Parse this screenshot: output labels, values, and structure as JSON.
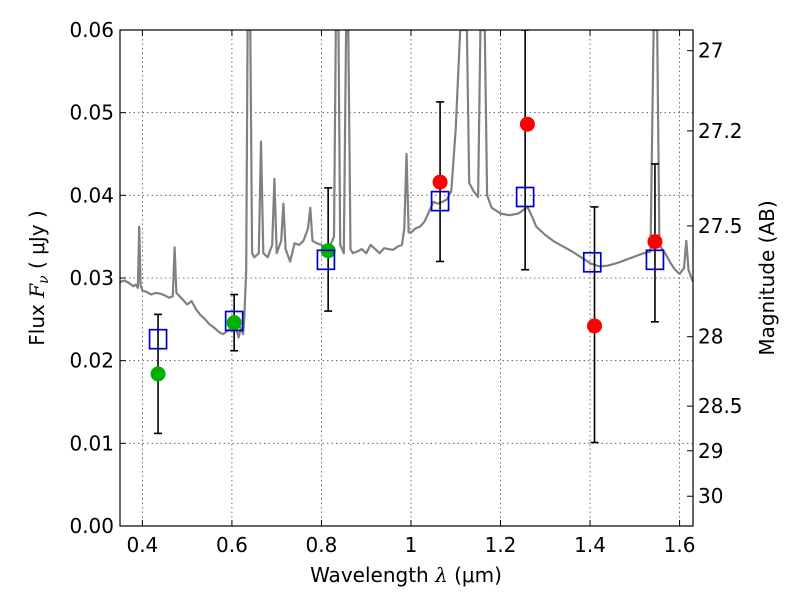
{
  "chart_data": {
    "type": "scatter",
    "xlabel_prefix": "Wavelength",
    "xlabel_symbol": "λ",
    "xlabel_unit": "(μm)",
    "ylabel_prefix": "Flux",
    "ylabel_symbol": "F",
    "ylabel_subscript": "ν",
    "ylabel_unit": "( μJy )",
    "y2label": "Magnitude (AB)",
    "xlim": [
      0.35,
      1.63
    ],
    "ylim": [
      0.0,
      0.06
    ],
    "grid": true,
    "x_ticks": [
      0.4,
      0.6,
      0.8,
      1.0,
      1.2,
      1.4,
      1.6
    ],
    "x_tick_labels": [
      "0.4",
      "0.6",
      "0.8",
      "1",
      "1.2",
      "1.4",
      "1.6"
    ],
    "y_ticks": [
      0.0,
      0.01,
      0.02,
      0.03,
      0.04,
      0.05,
      0.06
    ],
    "y_tick_labels": [
      "0.00",
      "0.01",
      "0.02",
      "0.03",
      "0.04",
      "0.05",
      "0.06"
    ],
    "y2_ticks": [
      {
        "label": "27",
        "flux": 0.0575
      },
      {
        "label": "27.2",
        "flux": 0.0478
      },
      {
        "label": "27.5",
        "flux": 0.0363
      },
      {
        "label": "28",
        "flux": 0.0229
      },
      {
        "label": "28.5",
        "flux": 0.0145
      },
      {
        "label": "29",
        "flux": 0.0091
      },
      {
        "label": "30",
        "flux": 0.0036
      }
    ],
    "model_spectrum": {
      "color": "#808080",
      "points": [
        [
          0.35,
          0.0295
        ],
        [
          0.36,
          0.0297
        ],
        [
          0.37,
          0.0294
        ],
        [
          0.38,
          0.029
        ],
        [
          0.385,
          0.0292
        ],
        [
          0.39,
          0.0288
        ],
        [
          0.393,
          0.0362
        ],
        [
          0.396,
          0.0291
        ],
        [
          0.4,
          0.0285
        ],
        [
          0.41,
          0.0283
        ],
        [
          0.42,
          0.028
        ],
        [
          0.43,
          0.0282
        ],
        [
          0.44,
          0.0281
        ],
        [
          0.45,
          0.0279
        ],
        [
          0.46,
          0.0276
        ],
        [
          0.468,
          0.0278
        ],
        [
          0.472,
          0.0337
        ],
        [
          0.476,
          0.0282
        ],
        [
          0.49,
          0.0274
        ],
        [
          0.5,
          0.0268
        ],
        [
          0.51,
          0.0272
        ],
        [
          0.52,
          0.0262
        ],
        [
          0.53,
          0.0255
        ],
        [
          0.54,
          0.025
        ],
        [
          0.55,
          0.0244
        ],
        [
          0.56,
          0.024
        ],
        [
          0.57,
          0.0235
        ],
        [
          0.58,
          0.0232
        ],
        [
          0.59,
          0.0236
        ],
        [
          0.6,
          0.024
        ],
        [
          0.61,
          0.0238
        ],
        [
          0.615,
          0.0228
        ],
        [
          0.62,
          0.024
        ],
        [
          0.625,
          0.0232
        ],
        [
          0.628,
          0.0254
        ],
        [
          0.632,
          0.031
        ],
        [
          0.635,
          0.06
        ],
        [
          0.641,
          0.06
        ],
        [
          0.645,
          0.033
        ],
        [
          0.65,
          0.0325
        ],
        [
          0.66,
          0.033
        ],
        [
          0.665,
          0.0465
        ],
        [
          0.67,
          0.033
        ],
        [
          0.68,
          0.0325
        ],
        [
          0.69,
          0.034
        ],
        [
          0.695,
          0.042
        ],
        [
          0.7,
          0.033
        ],
        [
          0.71,
          0.0345
        ],
        [
          0.715,
          0.039
        ],
        [
          0.72,
          0.0335
        ],
        [
          0.73,
          0.032
        ],
        [
          0.74,
          0.0342
        ],
        [
          0.75,
          0.034
        ],
        [
          0.76,
          0.0345
        ],
        [
          0.77,
          0.036
        ],
        [
          0.775,
          0.0385
        ],
        [
          0.78,
          0.0345
        ],
        [
          0.79,
          0.0342
        ],
        [
          0.8,
          0.034
        ],
        [
          0.81,
          0.0335
        ],
        [
          0.82,
          0.034
        ],
        [
          0.828,
          0.035
        ],
        [
          0.832,
          0.06
        ],
        [
          0.838,
          0.06
        ],
        [
          0.842,
          0.034
        ],
        [
          0.85,
          0.033
        ],
        [
          0.855,
          0.06
        ],
        [
          0.86,
          0.06
        ],
        [
          0.865,
          0.0335
        ],
        [
          0.87,
          0.033
        ],
        [
          0.88,
          0.0332
        ],
        [
          0.89,
          0.0335
        ],
        [
          0.9,
          0.033
        ],
        [
          0.91,
          0.034
        ],
        [
          0.92,
          0.0335
        ],
        [
          0.93,
          0.033
        ],
        [
          0.94,
          0.0336
        ],
        [
          0.95,
          0.0335
        ],
        [
          0.96,
          0.0334
        ],
        [
          0.97,
          0.0338
        ],
        [
          0.98,
          0.034
        ],
        [
          0.985,
          0.036
        ],
        [
          0.99,
          0.045
        ],
        [
          0.995,
          0.0355
        ],
        [
          1.0,
          0.0355
        ],
        [
          1.01,
          0.036
        ],
        [
          1.02,
          0.0362
        ],
        [
          1.03,
          0.0368
        ],
        [
          1.04,
          0.038
        ],
        [
          1.05,
          0.0392
        ],
        [
          1.06,
          0.039
        ],
        [
          1.07,
          0.0392
        ],
        [
          1.08,
          0.0395
        ],
        [
          1.09,
          0.0405
        ],
        [
          1.1,
          0.048
        ],
        [
          1.11,
          0.06
        ],
        [
          1.125,
          0.06
        ],
        [
          1.13,
          0.0415
        ],
        [
          1.14,
          0.0405
        ],
        [
          1.15,
          0.0398
        ],
        [
          1.155,
          0.06
        ],
        [
          1.165,
          0.06
        ],
        [
          1.17,
          0.04
        ],
        [
          1.18,
          0.0385
        ],
        [
          1.2,
          0.0378
        ],
        [
          1.22,
          0.0376
        ],
        [
          1.24,
          0.0378
        ],
        [
          1.25,
          0.0382
        ],
        [
          1.26,
          0.0386
        ],
        [
          1.27,
          0.0375
        ],
        [
          1.28,
          0.0362
        ],
        [
          1.3,
          0.0352
        ],
        [
          1.32,
          0.0344
        ],
        [
          1.34,
          0.0338
        ],
        [
          1.36,
          0.0332
        ],
        [
          1.38,
          0.0325
        ],
        [
          1.4,
          0.0318
        ],
        [
          1.42,
          0.0314
        ],
        [
          1.44,
          0.0315
        ],
        [
          1.46,
          0.0318
        ],
        [
          1.48,
          0.0322
        ],
        [
          1.5,
          0.0326
        ],
        [
          1.52,
          0.033
        ],
        [
          1.535,
          0.0332
        ],
        [
          1.542,
          0.06
        ],
        [
          1.55,
          0.06
        ],
        [
          1.555,
          0.034
        ],
        [
          1.57,
          0.0328
        ],
        [
          1.58,
          0.0318
        ],
        [
          1.59,
          0.031
        ],
        [
          1.6,
          0.0305
        ],
        [
          1.61,
          0.0312
        ],
        [
          1.615,
          0.0345
        ],
        [
          1.62,
          0.031
        ],
        [
          1.63,
          0.0295
        ]
      ]
    },
    "series": [
      {
        "marker": "circle",
        "color": "#00b000",
        "x": [
          0.435,
          0.605,
          0.815
        ],
        "y": [
          0.0184,
          0.0246,
          0.0333
        ]
      },
      {
        "marker": "circle",
        "color": "#ff0000",
        "x": [
          1.065,
          1.26,
          1.41,
          1.545
        ],
        "y": [
          0.0416,
          0.0486,
          0.0242,
          0.0344
        ]
      },
      {
        "marker": "open-square",
        "color": "#0000cc",
        "x": [
          0.435,
          0.605,
          0.81,
          1.065,
          1.255,
          1.405,
          1.545
        ],
        "y": [
          0.0226,
          0.0248,
          0.0322,
          0.0393,
          0.0398,
          0.0319,
          0.0322
        ]
      }
    ],
    "error_bars": {
      "color": "#000000",
      "x": [
        0.435,
        0.605,
        0.815,
        1.065,
        1.255,
        1.41,
        1.545
      ],
      "low": [
        0.0112,
        0.0212,
        0.026,
        0.032,
        0.031,
        0.0101,
        0.0247
      ],
      "high": [
        0.0256,
        0.028,
        0.0409,
        0.0513,
        0.06,
        0.0386,
        0.0438
      ]
    }
  }
}
